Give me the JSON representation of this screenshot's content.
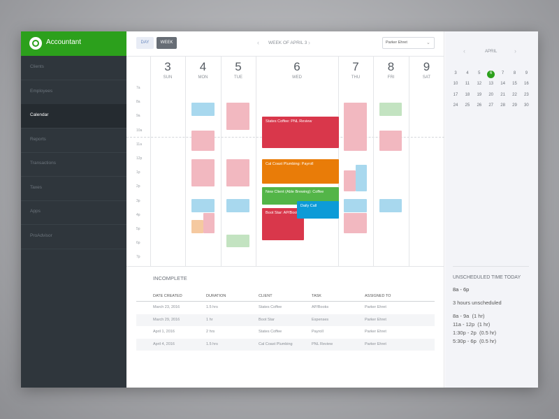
{
  "sidebar": {
    "brand": "Accountant",
    "menu": [
      "Clients",
      "Employees",
      "Calendar",
      "Reports",
      "Transactions",
      "Taxes",
      "Apps",
      "ProAdvisor"
    ],
    "active": 2
  },
  "toolbar": {
    "day": "DAY",
    "week": "WEEK",
    "week_label": "WEEK OF APRIL 3",
    "user": "Parker Ehret"
  },
  "calendar": {
    "hours": [
      "7a",
      "8a",
      "9a",
      "10a",
      "11a",
      "12p",
      "1p",
      "2p",
      "3p",
      "4p",
      "5p",
      "6p",
      "7p"
    ],
    "days": [
      {
        "num": 3,
        "name": "SUN"
      },
      {
        "num": 4,
        "name": "MON"
      },
      {
        "num": 5,
        "name": "TUE"
      },
      {
        "num": 6,
        "name": "WED"
      },
      {
        "num": 7,
        "name": "THU"
      },
      {
        "num": 8,
        "name": "FRI"
      },
      {
        "num": 9,
        "name": "SAT"
      }
    ],
    "events": [
      "States Coffee: PNL Review",
      "Cal Coast Plumbing: Payroll",
      "New Client (Able Brewing): Coffee",
      "Boot Star: AP/Books",
      "Daily Call"
    ]
  },
  "table": {
    "title": "INCOMPLETE",
    "headers": [
      "DATE CREATED",
      "DURATION",
      "CLIENT",
      "TASK",
      "ASSIGNED TO"
    ],
    "rows": [
      [
        "March 23, 2016",
        "1.5 hrs",
        "States Coffee",
        "AP/Books",
        "Parker Ehret"
      ],
      [
        "March 29, 2016",
        "1 hr",
        "Boot Star",
        "Expenses",
        "Parker Ehret"
      ],
      [
        "April 1, 2016",
        "2 hrs",
        "States Coffee",
        "Payroll",
        "Parker Ehret"
      ],
      [
        "April 4, 2016",
        "1.5 hrs",
        "Cal Coast Plumbing",
        "PNL Review",
        "Parker Ehret"
      ]
    ]
  },
  "mini": {
    "month": "APRIL",
    "weeks": [
      [
        3,
        4,
        5,
        6,
        7,
        8,
        9
      ],
      [
        10,
        11,
        12,
        13,
        14,
        15,
        16
      ],
      [
        17,
        18,
        19,
        20,
        21,
        22,
        23
      ],
      [
        24,
        25,
        26,
        27,
        28,
        29,
        30
      ]
    ],
    "today": 6
  },
  "unscheduled": {
    "title": "UNSCHEDULED TIME TODAY",
    "range": "8a - 6p",
    "summary": "3 hours unscheduled",
    "slots": [
      "8a - 9a  (1 hr)",
      "11a - 12p  (1 hr)",
      "1:30p - 2p  (0.5 hr)",
      "5:30p - 6p  (0.5 hr)"
    ]
  }
}
